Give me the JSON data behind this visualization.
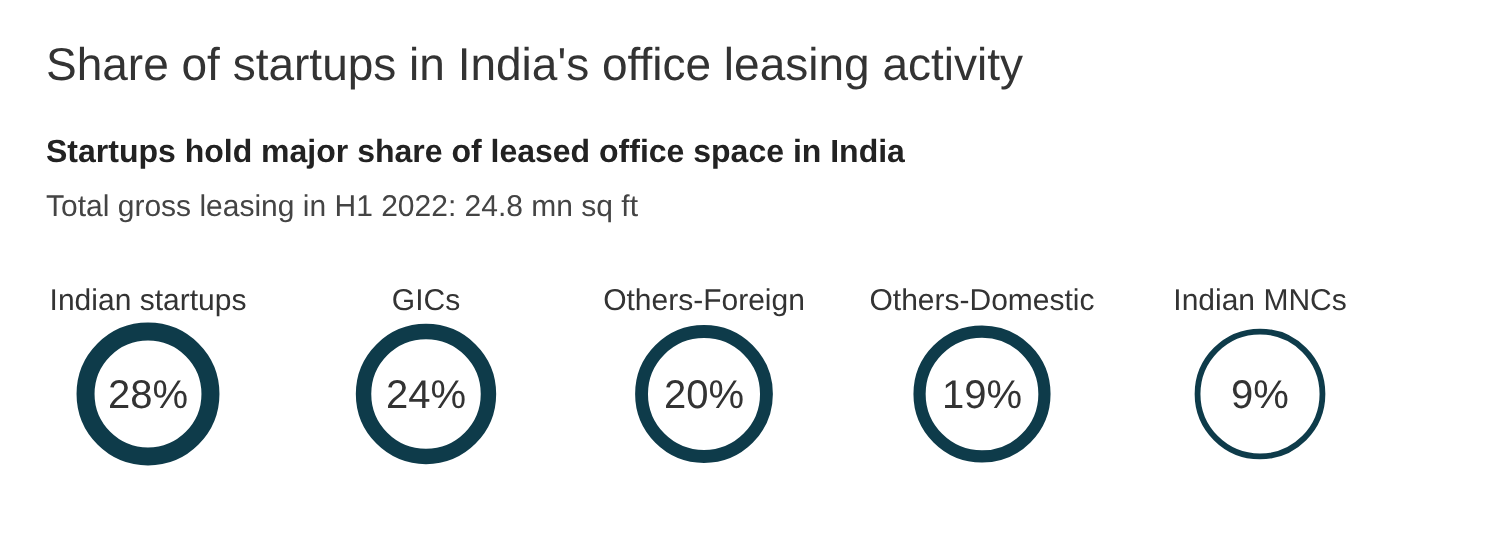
{
  "chart_data": {
    "type": "other",
    "title": "Share of startups in India's office leasing activity",
    "subtitle": [
      "Startups hold major share of leased office space in India",
      "Total gross leasing in H1 2022: 24.8 mn sq ft"
    ],
    "categories": [
      "Indian startups",
      "GICs",
      "Others-Foreign",
      "Others-Domestic",
      "Indian MNCs"
    ],
    "values": [
      28,
      24,
      20,
      19,
      9
    ],
    "value_labels": [
      "28%",
      "24%",
      "20%",
      "19%",
      "9%"
    ],
    "color": "#0e3b4a"
  }
}
